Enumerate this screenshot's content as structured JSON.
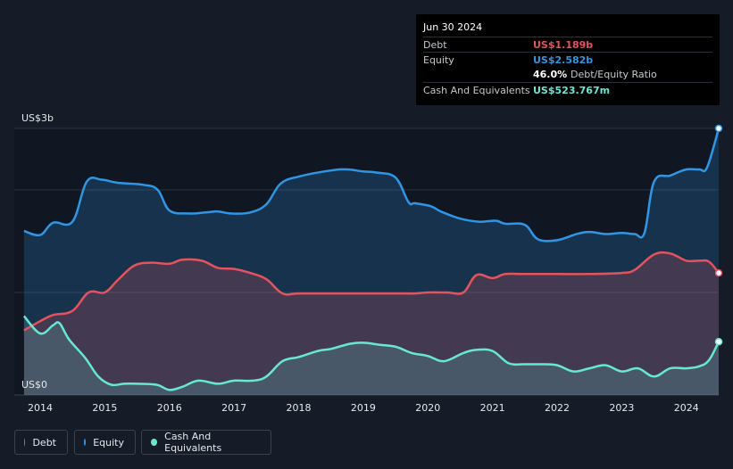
{
  "colors": {
    "debt": "#e5535e",
    "equity": "#2f96e6",
    "cash": "#67e8d3",
    "grid": "#2c3240",
    "text": "#e6e8ec",
    "background": "#151b27"
  },
  "tooltip": {
    "date": "Jun 30 2024",
    "debt_label": "Debt",
    "debt_value": "US$1.189b",
    "equity_label": "Equity",
    "equity_value": "US$2.582b",
    "ratio_value": "46.0%",
    "ratio_label": "Debt/Equity Ratio",
    "cash_label": "Cash And Equivalents",
    "cash_value": "US$523.767m"
  },
  "legend": [
    {
      "key": "debt",
      "label": "Debt"
    },
    {
      "key": "equity",
      "label": "Equity"
    },
    {
      "key": "cash",
      "label": "Cash And Equivalents"
    }
  ],
  "chart_data": {
    "type": "area",
    "title": "",
    "xlabel": "",
    "ylabel": "",
    "y_unit": "US$ billions",
    "ylim": [
      0,
      2.6
    ],
    "xlim": [
      2013.6,
      2024.5
    ],
    "y_tick_labels": [
      {
        "value": 2.6,
        "label": "US$3b"
      },
      {
        "value": 0,
        "label": "US$0"
      }
    ],
    "x_tick_labels": [
      "2014",
      "2015",
      "2016",
      "2017",
      "2018",
      "2019",
      "2020",
      "2021",
      "2022",
      "2023",
      "2024"
    ],
    "x_ticks": [
      2014,
      2015,
      2016,
      2017,
      2018,
      2019,
      2020,
      2021,
      2022,
      2023,
      2024
    ],
    "series": [
      {
        "name": "Equity",
        "key": "equity",
        "x": [
          2013.75,
          2014.0,
          2014.2,
          2014.5,
          2014.72,
          2014.95,
          2015.2,
          2015.6,
          2015.82,
          2016.0,
          2016.3,
          2016.55,
          2016.75,
          2016.95,
          2017.25,
          2017.5,
          2017.72,
          2018.0,
          2018.5,
          2018.75,
          2019.0,
          2019.2,
          2019.5,
          2019.7,
          2019.8,
          2020.05,
          2020.2,
          2020.5,
          2020.8,
          2021.05,
          2021.2,
          2021.5,
          2021.7,
          2022.0,
          2022.3,
          2022.5,
          2022.75,
          2023.0,
          2023.2,
          2023.35,
          2023.5,
          2023.75,
          2024.0,
          2024.2,
          2024.32,
          2024.5
        ],
        "values": [
          1.6,
          1.56,
          1.68,
          1.69,
          2.08,
          2.1,
          2.07,
          2.05,
          2.0,
          1.8,
          1.77,
          1.78,
          1.79,
          1.77,
          1.78,
          1.86,
          2.06,
          2.13,
          2.19,
          2.2,
          2.18,
          2.17,
          2.12,
          1.88,
          1.87,
          1.84,
          1.79,
          1.72,
          1.69,
          1.7,
          1.67,
          1.66,
          1.52,
          1.51,
          1.57,
          1.59,
          1.57,
          1.58,
          1.57,
          1.58,
          2.08,
          2.14,
          2.2,
          2.2,
          2.22,
          2.6
        ]
      },
      {
        "name": "Debt",
        "key": "debt",
        "x": [
          2013.75,
          2014.0,
          2014.2,
          2014.5,
          2014.75,
          2015.0,
          2015.2,
          2015.45,
          2015.7,
          2016.0,
          2016.2,
          2016.5,
          2016.75,
          2017.0,
          2017.25,
          2017.5,
          2017.75,
          2018.0,
          2018.5,
          2019.0,
          2019.5,
          2019.8,
          2020.0,
          2020.3,
          2020.55,
          2020.75,
          2021.0,
          2021.2,
          2021.5,
          2022.0,
          2022.5,
          2023.0,
          2023.2,
          2023.5,
          2023.75,
          2024.0,
          2024.2,
          2024.35,
          2024.5
        ],
        "values": [
          0.63,
          0.72,
          0.78,
          0.82,
          1.0,
          1.0,
          1.12,
          1.26,
          1.29,
          1.28,
          1.32,
          1.31,
          1.24,
          1.23,
          1.19,
          1.13,
          0.99,
          0.99,
          0.99,
          0.99,
          0.99,
          0.99,
          1.0,
          1.0,
          1.0,
          1.17,
          1.14,
          1.18,
          1.18,
          1.18,
          1.18,
          1.19,
          1.22,
          1.37,
          1.38,
          1.31,
          1.31,
          1.3,
          1.19
        ]
      },
      {
        "name": "Cash And Equivalents",
        "key": "cash",
        "x": [
          2013.75,
          2014.0,
          2014.2,
          2014.3,
          2014.45,
          2014.7,
          2014.9,
          2015.1,
          2015.3,
          2015.5,
          2015.8,
          2016.0,
          2016.2,
          2016.45,
          2016.75,
          2017.0,
          2017.3,
          2017.5,
          2017.75,
          2018.0,
          2018.3,
          2018.5,
          2018.8,
          2019.0,
          2019.25,
          2019.5,
          2019.75,
          2020.0,
          2020.25,
          2020.55,
          2020.75,
          2021.0,
          2021.25,
          2021.5,
          2021.75,
          2022.0,
          2022.25,
          2022.5,
          2022.75,
          2023.0,
          2023.25,
          2023.5,
          2023.75,
          2024.0,
          2024.2,
          2024.35,
          2024.5
        ],
        "values": [
          0.77,
          0.6,
          0.68,
          0.7,
          0.54,
          0.36,
          0.18,
          0.1,
          0.11,
          0.11,
          0.1,
          0.05,
          0.08,
          0.14,
          0.11,
          0.14,
          0.14,
          0.18,
          0.33,
          0.37,
          0.43,
          0.45,
          0.5,
          0.51,
          0.49,
          0.47,
          0.41,
          0.38,
          0.33,
          0.41,
          0.44,
          0.43,
          0.31,
          0.3,
          0.3,
          0.29,
          0.23,
          0.26,
          0.29,
          0.23,
          0.26,
          0.18,
          0.26,
          0.26,
          0.28,
          0.34,
          0.52
        ]
      }
    ]
  }
}
